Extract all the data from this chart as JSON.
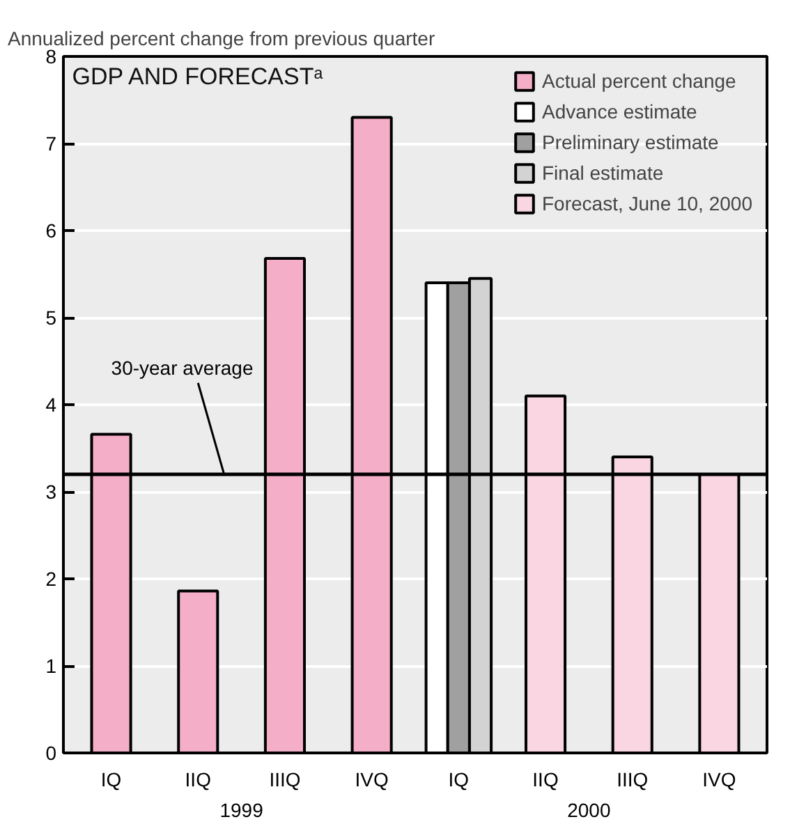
{
  "chart_data": {
    "type": "bar",
    "title": "GDP AND FORECASTᵃ",
    "ylabel": "Annualized percent change from previous quarter",
    "categories": [
      "IQ",
      "IIQ",
      "IIIQ",
      "IVQ",
      "IQ",
      "IIQ",
      "IIIQ",
      "IVQ"
    ],
    "series": [
      {
        "name": "Actual percent change",
        "color": "#f5aec8",
        "values": [
          3.66,
          1.86,
          5.68,
          7.3,
          null,
          null,
          null,
          null
        ]
      },
      {
        "name": "Advance estimate",
        "color": "#ffffff",
        "values": [
          null,
          null,
          null,
          null,
          5.4,
          null,
          null,
          null
        ]
      },
      {
        "name": "Preliminary estimate",
        "color": "#a0a0a0",
        "values": [
          null,
          null,
          null,
          null,
          5.4,
          null,
          null,
          null
        ]
      },
      {
        "name": "Final estimate",
        "color": "#d3d3d3",
        "values": [
          null,
          null,
          null,
          null,
          5.45,
          null,
          null,
          null
        ]
      },
      {
        "name": "Forecast, June 10, 2000",
        "color": "#f9d6e1",
        "values": [
          null,
          null,
          null,
          null,
          null,
          4.1,
          3.4,
          3.2
        ]
      }
    ],
    "ylim": [
      0,
      8
    ],
    "yticks": [
      0,
      1,
      2,
      3,
      4,
      5,
      6,
      7,
      8
    ],
    "ref_lines": [
      {
        "axis": "y",
        "value": 3.2,
        "label": "30-year average",
        "color": "#000000"
      }
    ],
    "annotations": [
      "1999",
      "2000"
    ],
    "grid": "y",
    "legend": "top right"
  }
}
